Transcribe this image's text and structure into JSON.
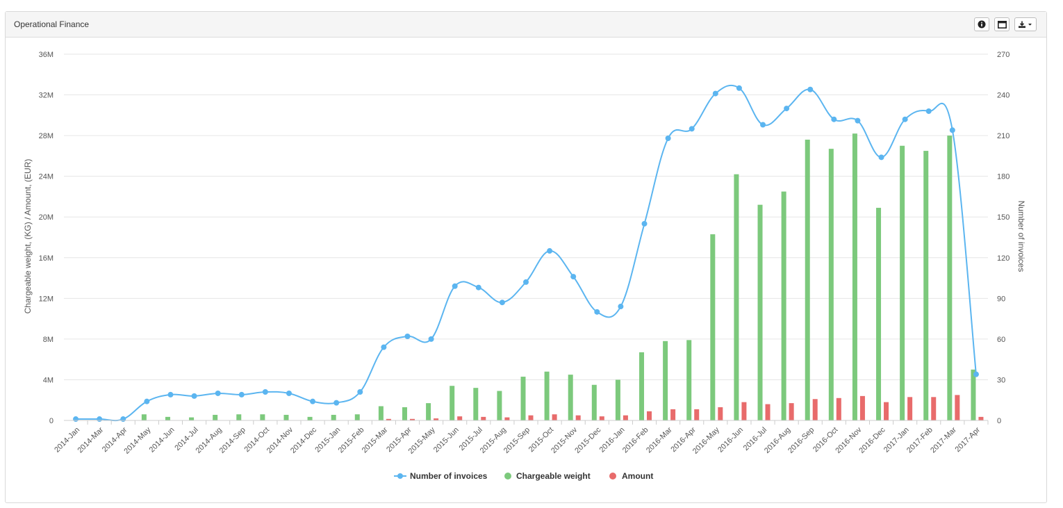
{
  "panel": {
    "title": "Operational Finance"
  },
  "toolbar": {
    "info": "info-icon",
    "fullscreen": "window-icon",
    "download": "download-icon"
  },
  "colors": {
    "invoices": "#5bb5f0",
    "weight": "#7cc97c",
    "amount": "#e86b6b",
    "grid": "#e6e6e6",
    "text": "#555555"
  },
  "chart_data": {
    "type": "bar",
    "ylabel": "Chargeable weight, (KG) / Amount, (EUR)",
    "y2label": "Number of invoices",
    "ylim": [
      0,
      36000000
    ],
    "y2lim": [
      0,
      270
    ],
    "yticks": [
      "0",
      "4M",
      "8M",
      "12M",
      "16M",
      "20M",
      "24M",
      "28M",
      "32M",
      "36M"
    ],
    "y2ticks": [
      "0",
      "30",
      "60",
      "90",
      "120",
      "150",
      "180",
      "210",
      "240",
      "270"
    ],
    "grid": true,
    "legend_position": "bottom-center",
    "categories": [
      "2014-Jan",
      "2014-Mar",
      "2014-Apr",
      "2014-May",
      "2014-Jun",
      "2014-Jul",
      "2014-Aug",
      "2014-Sep",
      "2014-Oct",
      "2014-Nov",
      "2014-Dec",
      "2015-Jan",
      "2015-Feb",
      "2015-Mar",
      "2015-Apr",
      "2015-May",
      "2015-Jun",
      "2015-Jul",
      "2015-Aug",
      "2015-Sep",
      "2015-Oct",
      "2015-Nov",
      "2015-Dec",
      "2016-Jan",
      "2016-Feb",
      "2016-Mar",
      "2016-Apr",
      "2016-May",
      "2016-Jun",
      "2016-Jul",
      "2016-Aug",
      "2016-Sep",
      "2016-Oct",
      "2016-Nov",
      "2016-Dec",
      "2017-Jan",
      "2017-Feb",
      "2017-Mar",
      "2017-Apr"
    ],
    "series": [
      {
        "name": "Number of invoices",
        "type": "line",
        "axis": "right",
        "values": [
          1,
          1,
          1,
          14,
          19,
          18,
          20,
          19,
          21,
          20,
          14,
          13,
          21,
          54,
          62,
          60,
          99,
          98,
          87,
          102,
          125,
          106,
          80,
          84,
          145,
          208,
          215,
          241,
          245,
          218,
          230,
          244,
          222,
          221,
          194,
          222,
          228,
          214,
          34
        ]
      },
      {
        "name": "Chargeable weight",
        "type": "bar",
        "axis": "left",
        "values": [
          0,
          0,
          0,
          600000,
          350000,
          300000,
          550000,
          600000,
          600000,
          550000,
          350000,
          550000,
          600000,
          1400000,
          1300000,
          1700000,
          3400000,
          3200000,
          2900000,
          4300000,
          4800000,
          4500000,
          3500000,
          4000000,
          6700000,
          7800000,
          7900000,
          18300000,
          24200000,
          21200000,
          22500000,
          27600000,
          26700000,
          28200000,
          20900000,
          27000000,
          26500000,
          28000000,
          5000000
        ]
      },
      {
        "name": "Amount",
        "type": "bar",
        "axis": "left",
        "values": [
          0,
          0,
          0,
          0,
          0,
          0,
          0,
          0,
          0,
          0,
          0,
          0,
          0,
          150000,
          150000,
          200000,
          400000,
          350000,
          300000,
          500000,
          600000,
          500000,
          400000,
          500000,
          900000,
          1100000,
          1100000,
          1300000,
          1800000,
          1600000,
          1700000,
          2100000,
          2200000,
          2400000,
          1800000,
          2300000,
          2300000,
          2500000,
          350000
        ]
      }
    ]
  }
}
